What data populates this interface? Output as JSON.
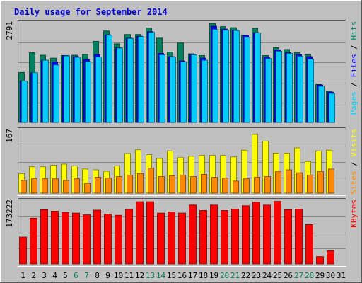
{
  "chart_data": {
    "type": "bar",
    "title": "Daily usage for September 2014",
    "colors": {
      "background": "#c0c0c0",
      "title": "#0000cc",
      "hits": "#00805c",
      "files": "#0000ff",
      "pages": "#00ccff",
      "visits": "#ffff00",
      "sites": "#ff8800",
      "kbytes": "#ff0000",
      "weekend_label": "#00805c",
      "weekday_label": "#000000"
    },
    "categories": [
      "1",
      "2",
      "3",
      "4",
      "5",
      "6",
      "7",
      "8",
      "9",
      "10",
      "11",
      "12",
      "13",
      "14",
      "15",
      "16",
      "17",
      "18",
      "19",
      "20",
      "21",
      "22",
      "23",
      "24",
      "25",
      "26",
      "27",
      "28",
      "29",
      "30",
      "31"
    ],
    "weekend_days": [
      6,
      7,
      13,
      14,
      20,
      21,
      27,
      28
    ],
    "panels": [
      {
        "name": "hits-files-pages",
        "ymax_label": "2791",
        "ymax": 2791,
        "right_labels": [
          {
            "text": "Pages",
            "color": "#00ccff"
          },
          {
            "text": " / ",
            "color": "#000000"
          },
          {
            "text": "Files",
            "color": "#0000ff"
          },
          {
            "text": " / ",
            "color": "#000000"
          },
          {
            "text": "Hits",
            "color": "#00805c"
          }
        ],
        "series": [
          {
            "name": "Hits",
            "color": "#00805c",
            "values": [
              1400,
              1950,
              1880,
              1800,
              1870,
              1880,
              1900,
              2270,
              2560,
              2200,
              2460,
              2460,
              2640,
              2360,
              1970,
              2220,
              1920,
              1870,
              2770,
              2680,
              2650,
              2440,
              2630,
              1870,
              2090,
              2040,
              1950,
              1890,
              1060,
              880,
              null
            ]
          },
          {
            "name": "Files",
            "color": "#0000ff",
            "values": [
              1160,
              1390,
              1740,
              1690,
              1870,
              1840,
              1760,
              1900,
              2450,
              2090,
              2360,
              2410,
              2540,
              1930,
              1840,
              1720,
              1900,
              1800,
              2690,
              2610,
              2580,
              2430,
              2510,
              1830,
              2030,
              1950,
              1900,
              1840,
              1050,
              850,
              null
            ]
          },
          {
            "name": "Pages",
            "color": "#00ccff",
            "values": [
              1160,
              1390,
              1740,
              1610,
              1860,
              1820,
              1700,
              1830,
              2440,
              2080,
              2350,
              2400,
              2520,
              1890,
              1830,
              1690,
              1890,
              1740,
              2600,
              2580,
              2570,
              2380,
              2500,
              1790,
              1990,
              1930,
              1850,
              1770,
              1010,
              810,
              null
            ]
          }
        ]
      },
      {
        "name": "visits-sites",
        "ymax_label": "167",
        "ymax": 167,
        "right_labels": [
          {
            "text": "Sites",
            "color": "#ff8800"
          },
          {
            "text": " / ",
            "color": "#000000"
          },
          {
            "text": "Visits",
            "color": "#ffff00"
          }
        ],
        "series": [
          {
            "name": "Visits",
            "color": "#ffff00",
            "values": [
              52,
              70,
              70,
              74,
              77,
              72,
              64,
              62,
              58,
              72,
              105,
              115,
              102,
              92,
              112,
              94,
              98,
              100,
              100,
              100,
              96,
              114,
              156,
              138,
              106,
              106,
              120,
              84,
              112,
              114,
              null
            ]
          },
          {
            "name": "Sites",
            "color": "#ff8800",
            "values": [
              34,
              38,
              38,
              38,
              34,
              38,
              26,
              42,
              40,
              44,
              48,
              52,
              66,
              44,
              46,
              48,
              44,
              50,
              42,
              40,
              32,
              38,
              42,
              44,
              58,
              62,
              54,
              48,
              58,
              64,
              null
            ]
          }
        ]
      },
      {
        "name": "kbytes",
        "ymax_label": "173222",
        "ymax": 173222,
        "right_labels": [
          {
            "text": "KBytes",
            "color": "#ff0000"
          }
        ],
        "series": [
          {
            "name": "KBytes",
            "color": "#ff0000",
            "values": [
              74000,
              126000,
              149000,
              145000,
              142000,
              140000,
              135000,
              148000,
              137000,
              134000,
              150000,
              171000,
              171000,
              140000,
              143000,
              140000,
              162000,
              147000,
              162000,
              147000,
              151000,
              160000,
              170000,
              162000,
              172000,
              149000,
              151000,
              108000,
              20000,
              36000,
              null
            ]
          }
        ]
      }
    ]
  }
}
